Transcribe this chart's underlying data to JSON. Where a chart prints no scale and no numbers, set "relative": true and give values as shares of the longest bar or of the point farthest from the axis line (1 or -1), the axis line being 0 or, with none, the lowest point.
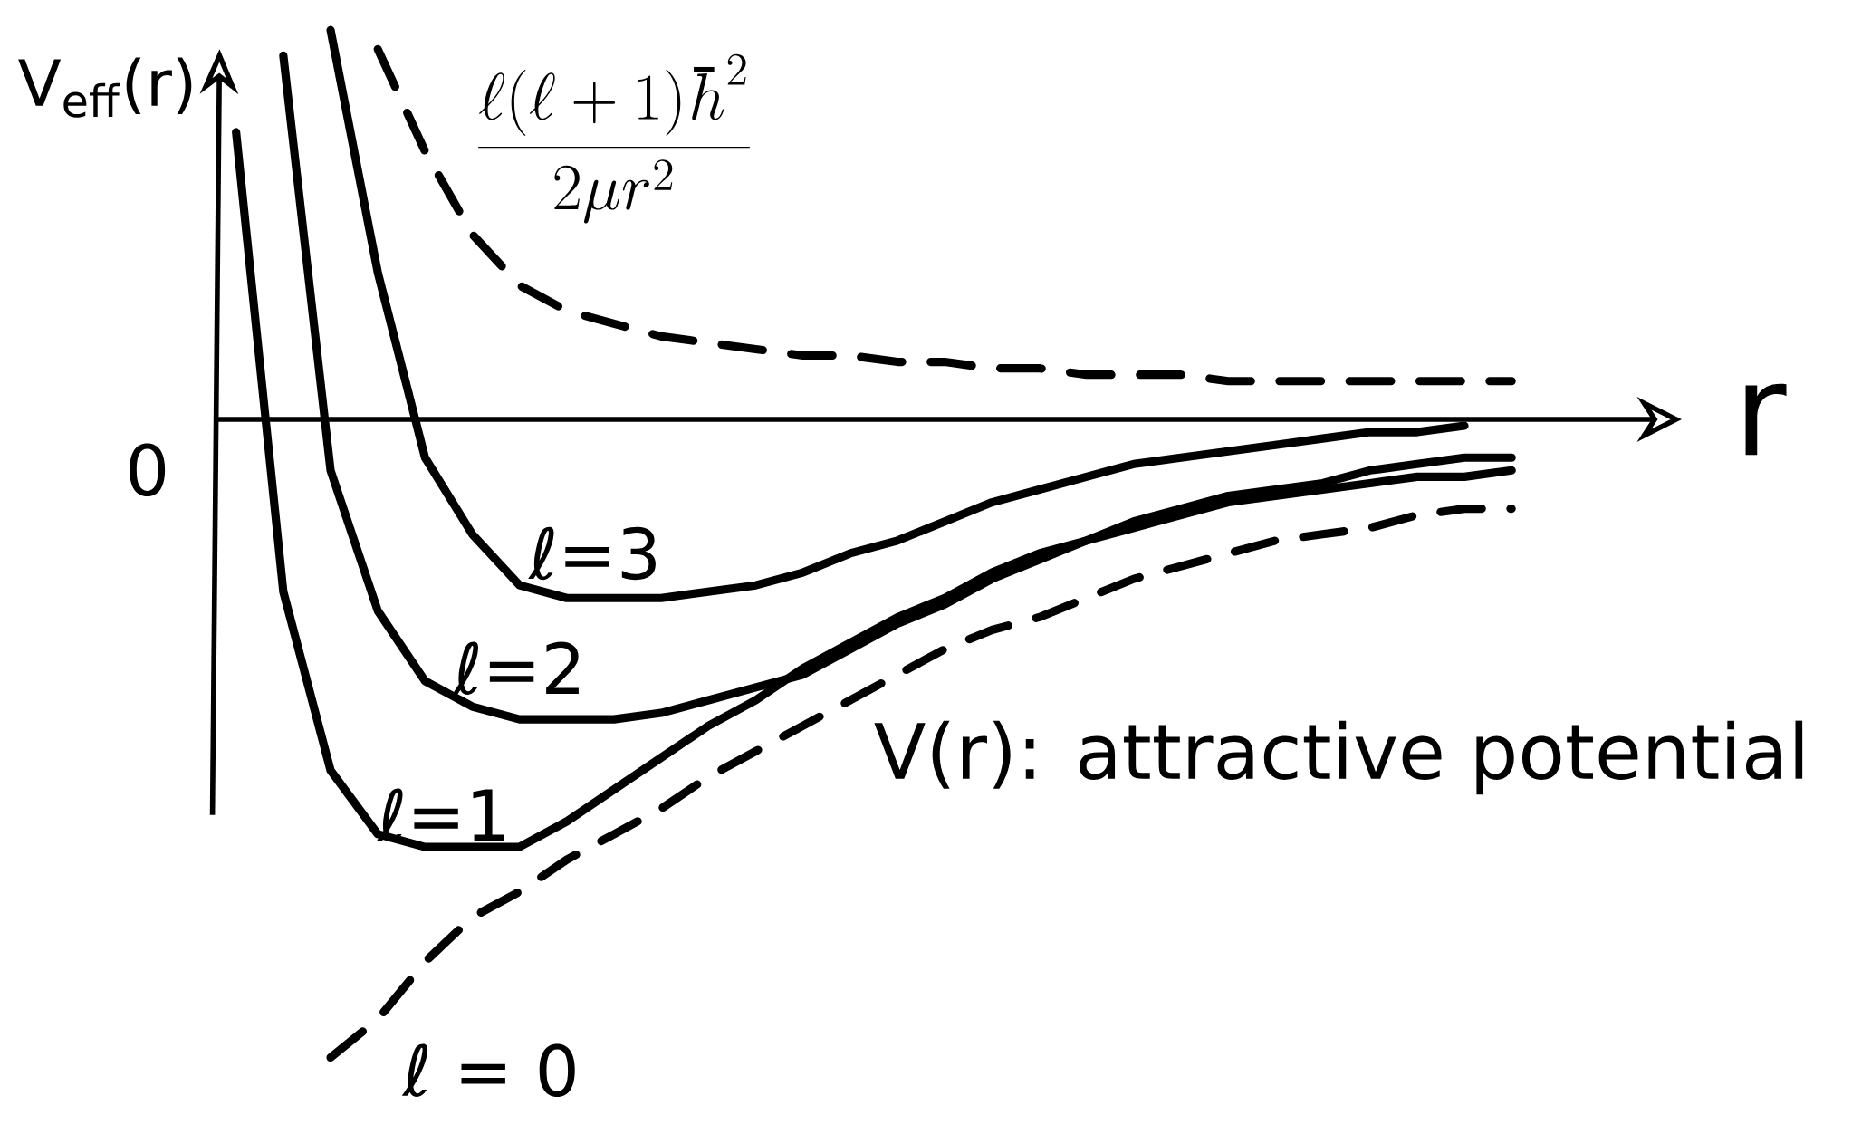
{
  "chart_data": {
    "type": "line",
    "relative": true,
    "xlabel": "r",
    "ylabel": "V$_{eff}$(r)",
    "categories": [
      null,
      null,
      null,
      null,
      null,
      null,
      null,
      null,
      null,
      null,
      null,
      null,
      null,
      null,
      null,
      null,
      null,
      null,
      null,
      null,
      null,
      null,
      null,
      null,
      null,
      null,
      null,
      null
    ],
    "series": [
      {
        "name": "\\frac{\\ell(\\ell+1)\\hbar^2}{2\\mu r^2}",
        "color": "#000000",
        "line_style": "dashed",
        "values": [
          null,
          null,
          null,
          0.58,
          0.42,
          0.29,
          0.21,
          0.17,
          0.15,
          0.13,
          0.12,
          0.11,
          0.1,
          0.1,
          0.09,
          0.09,
          0.08,
          0.08,
          0.07,
          0.07,
          0.07,
          0.06,
          0.06,
          0.06,
          0.06,
          0.06,
          0.06,
          0.06
        ]
      },
      {
        "name": "ℓ=3",
        "color": "#000000",
        "line_style": "solid",
        "values": [
          null,
          null,
          0.61,
          0.23,
          -0.06,
          -0.18,
          -0.26,
          -0.28,
          -0.28,
          -0.28,
          -0.27,
          -0.26,
          -0.24,
          -0.21,
          -0.19,
          -0.16,
          -0.13,
          -0.11,
          -0.09,
          -0.07,
          -0.06,
          -0.05,
          -0.04,
          -0.03,
          -0.02,
          -0.02,
          -0.01,
          null
        ]
      },
      {
        "name": "ℓ=2",
        "color": "#000000",
        "line_style": "solid",
        "values": [
          null,
          0.57,
          -0.08,
          -0.3,
          -0.41,
          -0.45,
          -0.47,
          -0.47,
          -0.47,
          -0.46,
          -0.44,
          -0.42,
          -0.4,
          -0.36,
          -0.32,
          -0.29,
          -0.25,
          -0.22,
          -0.19,
          -0.16,
          -0.14,
          -0.12,
          -0.11,
          -0.1,
          -0.08,
          -0.07,
          -0.06,
          -0.06
        ]
      },
      {
        "name": "ℓ=1",
        "color": "#000000",
        "line_style": "solid",
        "values": [
          0.45,
          -0.27,
          -0.55,
          -0.65,
          -0.67,
          -0.67,
          -0.67,
          -0.63,
          -0.58,
          -0.53,
          -0.48,
          -0.44,
          -0.39,
          -0.35,
          -0.31,
          -0.28,
          -0.24,
          -0.21,
          -0.19,
          -0.17,
          -0.15,
          -0.13,
          -0.12,
          -0.11,
          -0.1,
          -0.09,
          -0.09,
          -0.08
        ]
      },
      {
        "name": "ℓ = 0",
        "color": "#000000",
        "line_style": "dashed",
        "values": [
          null,
          null,
          -1.0,
          -0.94,
          -0.85,
          -0.78,
          -0.74,
          -0.69,
          -0.65,
          -0.61,
          -0.56,
          -0.52,
          -0.48,
          -0.44,
          -0.4,
          -0.36,
          -0.33,
          -0.31,
          -0.28,
          -0.25,
          -0.23,
          -0.21,
          -0.19,
          -0.18,
          -0.17,
          -0.15,
          -0.14,
          -0.14
        ]
      }
    ],
    "annotations": [
      "0",
      "V(r): attractive potential"
    ]
  }
}
